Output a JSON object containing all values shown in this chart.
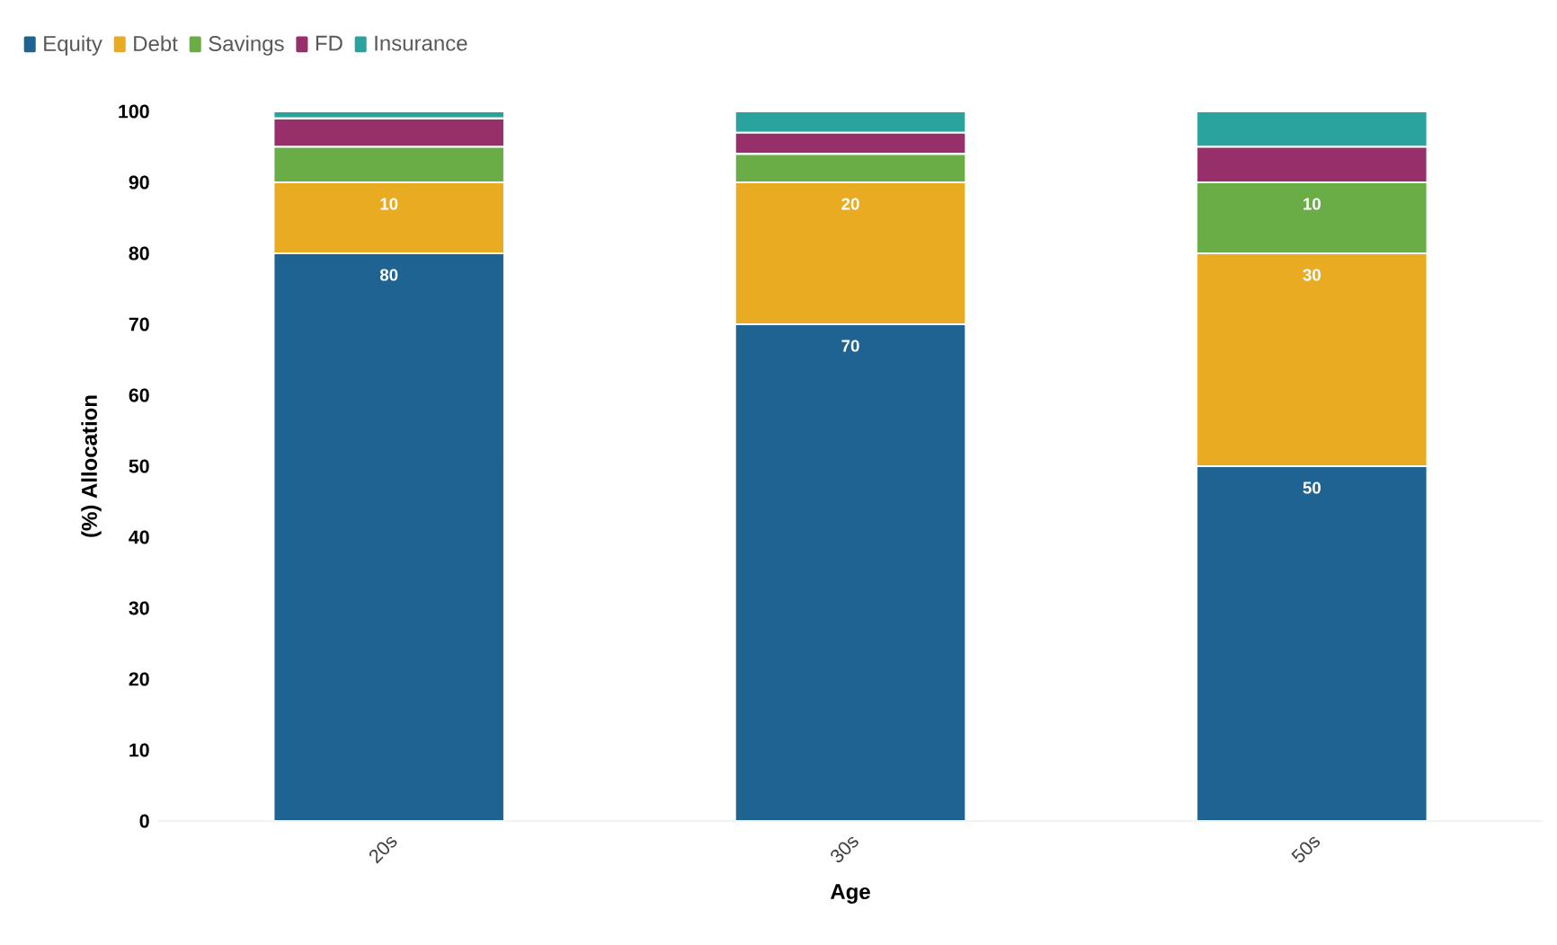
{
  "chart_data": {
    "type": "bar",
    "stacked": true,
    "categories": [
      "20s",
      "30s",
      "50s"
    ],
    "xlabel": "Age",
    "ylabel": "(%) Allocation",
    "ylim": [
      0,
      100
    ],
    "yticks": [
      0,
      10,
      20,
      30,
      40,
      50,
      60,
      70,
      80,
      90,
      100
    ],
    "legend": "top left",
    "series": [
      {
        "name": "Equity",
        "color": "#1f6392",
        "values": [
          80,
          70,
          50
        ],
        "value_labels": [
          "80",
          "70",
          "50"
        ]
      },
      {
        "name": "Debt",
        "color": "#e8ab22",
        "values": [
          10,
          20,
          30
        ],
        "value_labels": [
          "10",
          "20",
          "30"
        ]
      },
      {
        "name": "Savings",
        "color": "#6aac46",
        "values": [
          5,
          4,
          10
        ],
        "value_labels": [
          null,
          null,
          "10"
        ]
      },
      {
        "name": "FD",
        "color": "#962f6a",
        "values": [
          4,
          3,
          5
        ]
      },
      {
        "name": "Insurance",
        "color": "#2aa39e",
        "values": [
          1,
          3,
          5
        ]
      }
    ]
  }
}
